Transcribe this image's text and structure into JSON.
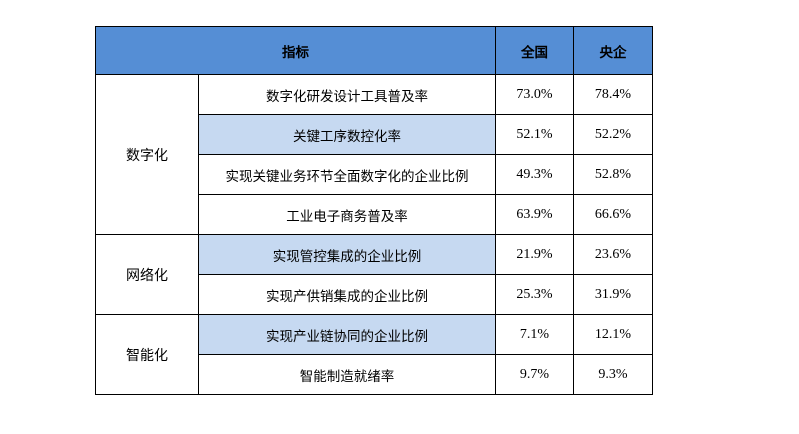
{
  "table": {
    "header": {
      "indicator": "指标",
      "national": "全国",
      "central_soe": "央企"
    },
    "groups": [
      {
        "category": "数字化",
        "rows": [
          {
            "indicator": "数字化研发设计工具普及率",
            "national": "73.0%",
            "central_soe": "78.4%",
            "shaded": false
          },
          {
            "indicator": "关键工序数控化率",
            "national": "52.1%",
            "central_soe": "52.2%",
            "shaded": true
          },
          {
            "indicator": "实现关键业务环节全面数字化的企业比例",
            "national": "49.3%",
            "central_soe": "52.8%",
            "shaded": false
          },
          {
            "indicator": "工业电子商务普及率",
            "national": "63.9%",
            "central_soe": "66.6%",
            "shaded": false
          }
        ]
      },
      {
        "category": "网络化",
        "rows": [
          {
            "indicator": "实现管控集成的企业比例",
            "national": "21.9%",
            "central_soe": "23.6%",
            "shaded": true
          },
          {
            "indicator": "实现产供销集成的企业比例",
            "national": "25.3%",
            "central_soe": "31.9%",
            "shaded": false
          }
        ]
      },
      {
        "category": "智能化",
        "rows": [
          {
            "indicator": "实现产业链协同的企业比例",
            "national": "7.1%",
            "central_soe": "12.1%",
            "shaded": true
          },
          {
            "indicator": "智能制造就绪率",
            "national": "9.7%",
            "central_soe": "9.3%",
            "shaded": false
          }
        ]
      }
    ]
  }
}
